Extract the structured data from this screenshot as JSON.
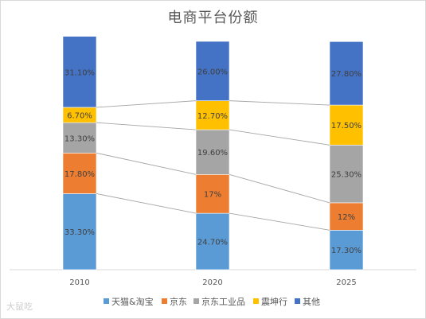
{
  "chart_data": {
    "type": "bar",
    "stacked": true,
    "title": "电商平台份额",
    "categories": [
      "2010",
      "2020",
      "2025"
    ],
    "series": [
      {
        "name": "天猫&淘宝",
        "color": "#5b9bd5",
        "values": [
          33.3,
          24.7,
          17.3
        ],
        "labels": [
          "33.30%",
          "24.70%",
          "17.30%"
        ]
      },
      {
        "name": "京东",
        "color": "#ed7d31",
        "values": [
          17.8,
          17,
          12
        ],
        "labels": [
          "17.80%",
          "17%",
          "12%"
        ]
      },
      {
        "name": "京东工业品",
        "color": "#a5a5a5",
        "values": [
          13.3,
          19.6,
          25.3
        ],
        "labels": [
          "13.30%",
          "19.60%",
          "25.30%"
        ]
      },
      {
        "name": "震坤行",
        "color": "#ffc000",
        "values": [
          6.7,
          12.7,
          17.5
        ],
        "labels": [
          "6.70%",
          "12.70%",
          "17.50%"
        ]
      },
      {
        "name": "其他",
        "color": "#4472c4",
        "values": [
          31.1,
          26,
          27.8
        ],
        "labels": [
          "31.10%",
          "26.00%",
          "27.80%"
        ]
      }
    ],
    "ylim": [
      0,
      100
    ],
    "series_lines": true,
    "legend_position": "bottom",
    "grid": false
  },
  "watermark": "大鼠吃"
}
